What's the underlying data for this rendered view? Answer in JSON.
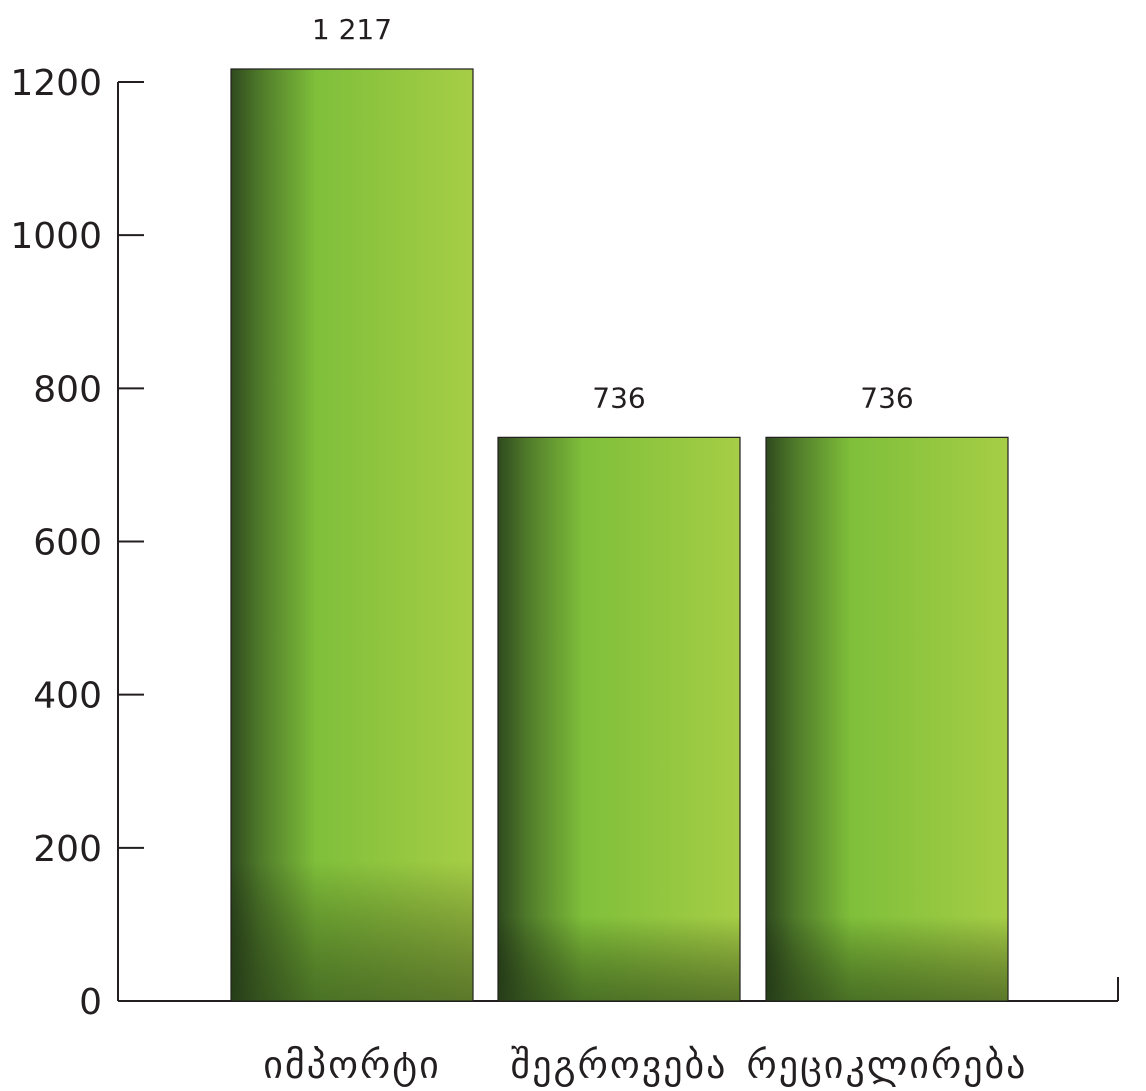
{
  "chart_data": {
    "type": "bar",
    "categories": [
      "იმპორტი",
      "შეგროვება",
      "რეციკლირება"
    ],
    "values": [
      1217,
      736,
      736
    ],
    "value_labels": [
      "1 217",
      "736",
      "736"
    ],
    "ylim": [
      0,
      1200
    ],
    "yticks": [
      0,
      200,
      400,
      600,
      800,
      1000,
      1200
    ],
    "grid": false,
    "legend": "none",
    "colors": {
      "bar_light": "#a6ce46",
      "bar_mid": "#7fbf3a",
      "bar_dark": "#3b5a24",
      "axis": "#231f20"
    }
  }
}
